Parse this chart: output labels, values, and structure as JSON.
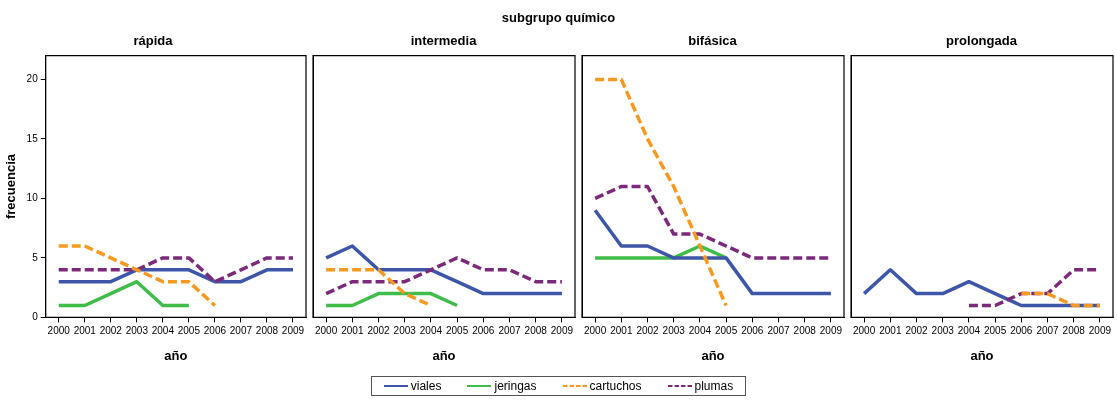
{
  "chart_data": [
    {
      "type": "line",
      "title": "rápida",
      "xlabel": "año",
      "ylabel": "frecuencia",
      "annotations": [
        "subgrupo químico"
      ],
      "categories": [
        "2000",
        "2001",
        "2002",
        "2003",
        "2004",
        "2005",
        "2006",
        "2007",
        "2008",
        "2009"
      ],
      "ylim": [
        0,
        22
      ],
      "yticks": [
        0,
        5,
        10,
        15,
        20
      ],
      "grid": false,
      "legend": "bottom",
      "marker": "none",
      "series": [
        {
          "name": "viales",
          "color": "#3e56a8",
          "line_style": "solid",
          "values": [
            3,
            3,
            3,
            4,
            4,
            4,
            3,
            3,
            4,
            4
          ]
        },
        {
          "name": "jeringas",
          "color": "#3fbc4a",
          "line_style": "solid",
          "values": [
            1,
            1,
            2,
            3,
            1,
            1,
            null,
            null,
            null,
            null
          ]
        },
        {
          "name": "cartuchos",
          "color": "#f7991f",
          "line_style": "dashed",
          "values": [
            6,
            6,
            5,
            4,
            3,
            3,
            1,
            null,
            null,
            null
          ]
        },
        {
          "name": "plumas",
          "color": "#7b2a7b",
          "line_style": "dashed",
          "values": [
            4,
            4,
            4,
            4,
            5,
            5,
            3,
            4,
            5,
            5
          ]
        }
      ]
    },
    {
      "type": "line",
      "title": "intermedia",
      "xlabel": "año",
      "categories": [
        "2000",
        "2001",
        "2002",
        "2003",
        "2004",
        "2005",
        "2006",
        "2007",
        "2008",
        "2009"
      ],
      "ylim": [
        0,
        22
      ],
      "yticks": [
        0,
        5,
        10,
        15,
        20
      ],
      "tick_labels": "x",
      "grid": false,
      "marker": "none",
      "series": [
        {
          "name": "viales",
          "color": "#3e56a8",
          "line_style": "solid",
          "values": [
            5,
            6,
            4,
            4,
            4,
            3,
            2,
            2,
            2,
            2
          ]
        },
        {
          "name": "jeringas",
          "color": "#3fbc4a",
          "line_style": "solid",
          "values": [
            1,
            1,
            2,
            2,
            2,
            1,
            null,
            null,
            null,
            null
          ]
        },
        {
          "name": "cartuchos",
          "color": "#f7991f",
          "line_style": "dashed",
          "values": [
            4,
            4,
            4,
            2,
            1,
            null,
            null,
            null,
            null,
            null
          ]
        },
        {
          "name": "plumas",
          "color": "#7b2a7b",
          "line_style": "dashed",
          "values": [
            2,
            3,
            3,
            3,
            4,
            5,
            4,
            4,
            3,
            3
          ]
        }
      ]
    },
    {
      "type": "line",
      "title": "bifásica",
      "xlabel": "año",
      "categories": [
        "2000",
        "2001",
        "2002",
        "2003",
        "2004",
        "2005",
        "2006",
        "2007",
        "2008",
        "2009"
      ],
      "ylim": [
        0,
        22
      ],
      "yticks": [
        0,
        5,
        10,
        15,
        20
      ],
      "tick_labels": "x",
      "grid": false,
      "marker": "none",
      "series": [
        {
          "name": "viales",
          "color": "#3e56a8",
          "line_style": "solid",
          "values": [
            9,
            6,
            6,
            5,
            5,
            5,
            2,
            2,
            2,
            2
          ]
        },
        {
          "name": "jeringas",
          "color": "#3fbc4a",
          "line_style": "solid",
          "values": [
            5,
            5,
            5,
            5,
            6,
            5,
            null,
            null,
            null,
            null
          ]
        },
        {
          "name": "cartuchos",
          "color": "#f7991f",
          "line_style": "dashed",
          "values": [
            20,
            20,
            15,
            11,
            6,
            1,
            null,
            null,
            null,
            null
          ]
        },
        {
          "name": "plumas",
          "color": "#7b2a7b",
          "line_style": "dashed",
          "values": [
            10,
            11,
            11,
            7,
            7,
            6,
            5,
            5,
            5,
            5
          ]
        }
      ]
    },
    {
      "type": "line",
      "title": "prolongada",
      "xlabel": "año",
      "categories": [
        "2000",
        "2001",
        "2002",
        "2003",
        "2004",
        "2005",
        "2006",
        "2007",
        "2008",
        "2009"
      ],
      "ylim": [
        0,
        22
      ],
      "yticks": [
        0,
        5,
        10,
        15,
        20
      ],
      "tick_labels": "x",
      "grid": false,
      "marker": "none",
      "series": [
        {
          "name": "viales",
          "color": "#3e56a8",
          "line_style": "solid",
          "values": [
            2,
            4,
            2,
            2,
            3,
            2,
            1,
            1,
            1,
            1
          ]
        },
        {
          "name": "cartuchos",
          "color": "#f7991f",
          "line_style": "dashed",
          "values": [
            null,
            null,
            null,
            null,
            null,
            null,
            2,
            2,
            1,
            1
          ]
        },
        {
          "name": "plumas",
          "color": "#7b2a7b",
          "line_style": "dashed",
          "values": [
            null,
            null,
            null,
            null,
            1,
            1,
            2,
            2,
            4,
            4
          ]
        }
      ]
    }
  ]
}
